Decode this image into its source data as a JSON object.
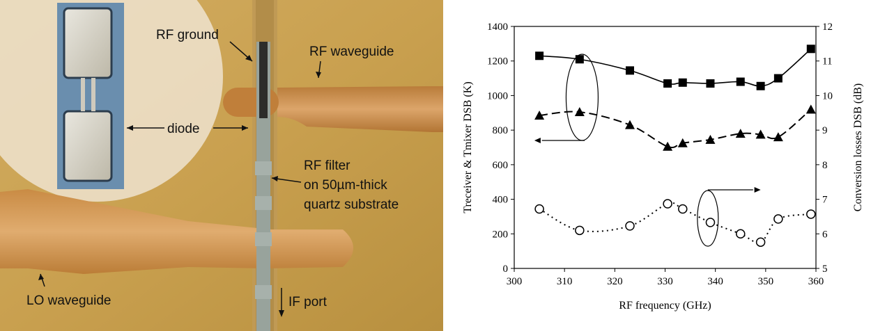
{
  "photo": {
    "labels": {
      "rf_ground": "RF ground",
      "rf_waveguide": "RF waveguide",
      "diode": "diode",
      "rf_filter_1": "RF filter",
      "rf_filter_2": "on 50µm-thick",
      "rf_filter_3": "quartz substrate",
      "lo_waveguide": "LO waveguide",
      "if_port": "IF port"
    }
  },
  "chart_data": {
    "type": "line",
    "x": [
      305,
      313,
      323,
      330.5,
      333.5,
      339,
      345,
      349,
      352.5,
      359
    ],
    "xlim": [
      300,
      360
    ],
    "xticks": [
      300,
      310,
      320,
      330,
      340,
      350,
      360
    ],
    "xlabel": "RF frequency (GHz)",
    "ylabel_left": "Treceiver & Tmixer DSB (K)",
    "ylim_left": [
      0,
      1400
    ],
    "yticks_left": [
      0,
      200,
      400,
      600,
      800,
      1000,
      1200,
      1400
    ],
    "ylabel_right": "Conversion losses DSB (dB)",
    "ylim_right": [
      5,
      12
    ],
    "yticks_right": [
      5,
      6,
      7,
      8,
      9,
      10,
      11,
      12
    ],
    "series": [
      {
        "marker": "square",
        "line": "solid",
        "axis": "left",
        "values": [
          1230,
          1210,
          1145,
          1070,
          1075,
          1070,
          1080,
          1055,
          1100,
          1270
        ]
      },
      {
        "marker": "triangle",
        "line": "dashed",
        "axis": "left",
        "values": [
          885,
          905,
          830,
          705,
          725,
          745,
          780,
          775,
          760,
          920
        ]
      },
      {
        "marker": "circle-open",
        "line": "dotted",
        "axis": "right",
        "values": [
          6.72,
          6.1,
          6.23,
          6.87,
          6.72,
          6.33,
          6.0,
          5.76,
          6.43,
          6.57
        ]
      }
    ],
    "grid": false
  }
}
